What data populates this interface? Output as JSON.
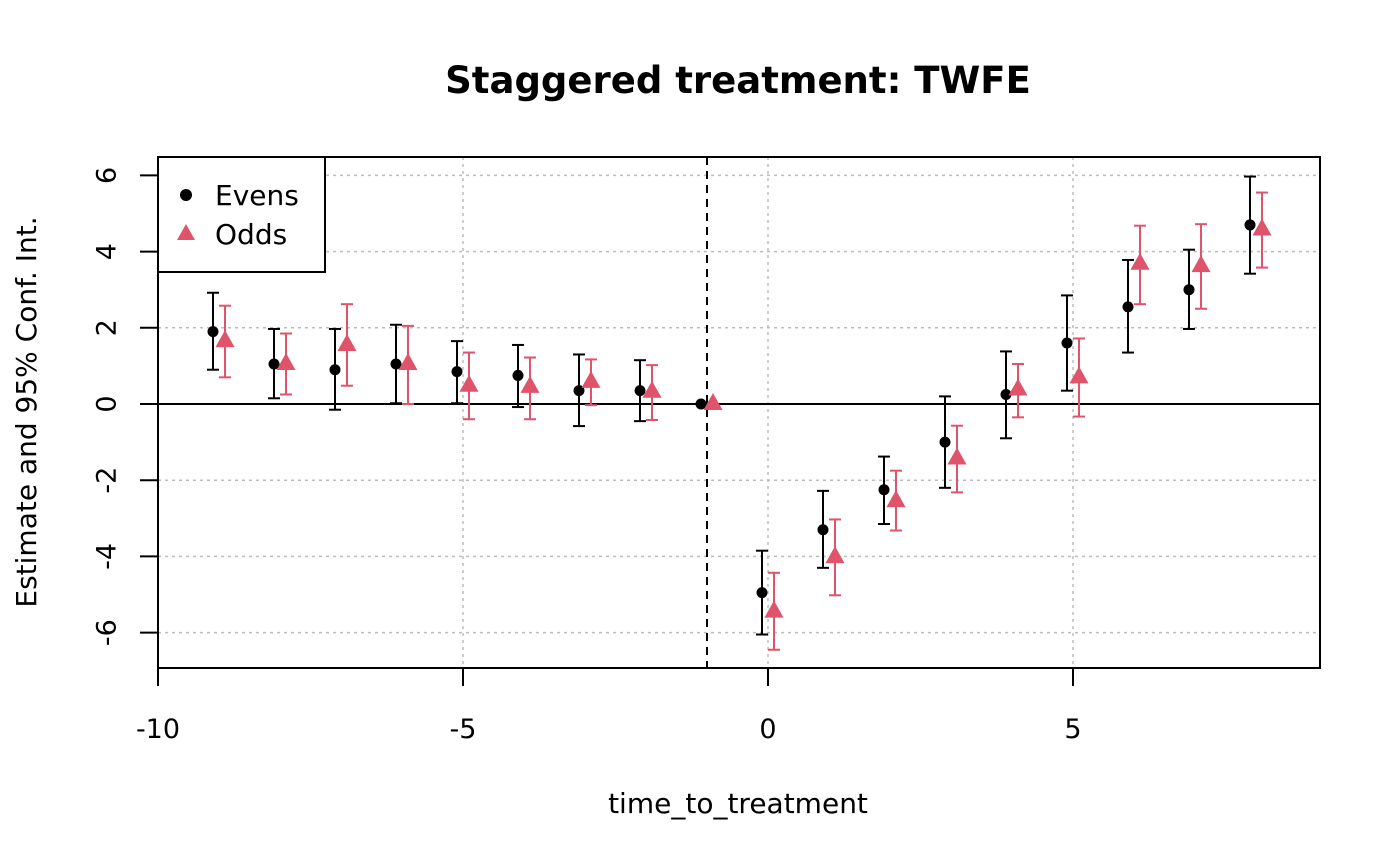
{
  "chart_data": {
    "type": "scatter",
    "title": "Staggered treatment: TWFE",
    "xlabel": "time_to_treatment",
    "ylabel": "Estimate and 95% Conf. Int.",
    "xlim": [
      -10,
      9
    ],
    "ylim": [
      -7,
      6.5
    ],
    "x_ticks": [
      -10,
      -5,
      0,
      5
    ],
    "y_ticks": [
      -6,
      -4,
      -2,
      0,
      2,
      4,
      6
    ],
    "x_tick_labels": [
      "-10",
      "-5",
      "0",
      "5"
    ],
    "y_tick_labels": [
      "-6",
      "-4",
      "-2",
      "0",
      "2",
      "4",
      "6"
    ],
    "grid": true,
    "reference_hline": 0,
    "reference_vline": -1,
    "legend": {
      "position": "top-left",
      "entries": [
        "Evens",
        "Odds"
      ]
    },
    "series": [
      {
        "name": "Evens",
        "marker": "circle",
        "color": "#000000",
        "x": [
          -9,
          -8,
          -7,
          -6,
          -5,
          -4,
          -3,
          -2,
          -1,
          0,
          1,
          2,
          3,
          4,
          5,
          6,
          7,
          8
        ],
        "y": [
          1.9,
          1.05,
          0.9,
          1.05,
          0.85,
          0.75,
          0.35,
          0.35,
          0.0,
          -4.95,
          -3.3,
          -2.25,
          -1.0,
          0.25,
          1.6,
          2.55,
          3.0,
          4.7
        ],
        "lower": [
          0.9,
          0.15,
          -0.15,
          0.02,
          0.02,
          -0.08,
          -0.58,
          -0.45,
          0.0,
          -6.05,
          -4.3,
          -3.15,
          -2.2,
          -0.9,
          0.35,
          1.35,
          1.97,
          3.42
        ],
        "upper": [
          2.92,
          1.97,
          1.97,
          2.08,
          1.65,
          1.55,
          1.3,
          1.15,
          0.0,
          -3.85,
          -2.28,
          -1.38,
          0.2,
          1.38,
          2.85,
          3.78,
          4.05,
          5.97
        ]
      },
      {
        "name": "Odds",
        "marker": "triangle",
        "color": "#DF536B",
        "x": [
          -9,
          -8,
          -7,
          -6,
          -5,
          -4,
          -3,
          -2,
          -1,
          0,
          1,
          2,
          3,
          4,
          5,
          6,
          7,
          8
        ],
        "y": [
          1.65,
          1.05,
          1.55,
          1.05,
          0.48,
          0.45,
          0.58,
          0.32,
          0.0,
          -5.45,
          -4.02,
          -2.55,
          -1.43,
          0.38,
          0.7,
          3.68,
          3.62,
          4.58
        ],
        "lower": [
          0.7,
          0.25,
          0.48,
          0.0,
          -0.4,
          -0.4,
          -0.03,
          -0.42,
          0.0,
          -6.45,
          -5.02,
          -3.32,
          -2.32,
          -0.35,
          -0.33,
          2.62,
          2.5,
          3.58
        ],
        "upper": [
          2.58,
          1.85,
          2.62,
          2.05,
          1.35,
          1.22,
          1.17,
          1.02,
          0.0,
          -4.43,
          -3.03,
          -1.75,
          -0.57,
          1.05,
          1.72,
          4.68,
          4.72,
          5.55
        ]
      }
    ]
  }
}
